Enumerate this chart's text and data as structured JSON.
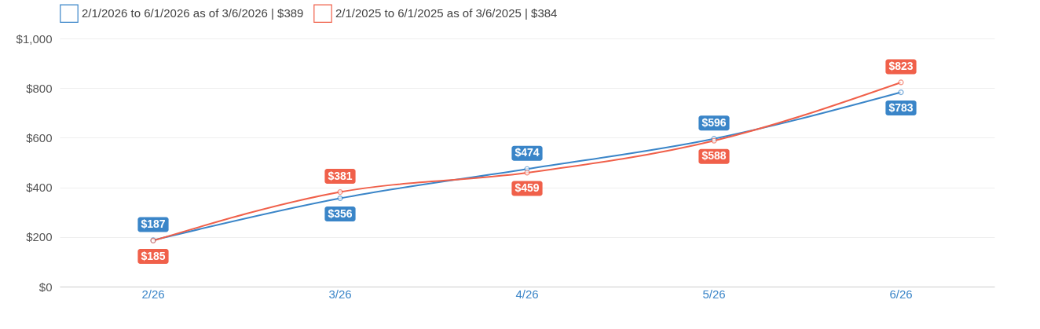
{
  "chart_data": {
    "type": "line",
    "categories": [
      "2/26",
      "3/26",
      "4/26",
      "5/26",
      "6/26"
    ],
    "series": [
      {
        "name": "2/1/2026 to 6/1/2026 as of 3/6/2026 | $389",
        "color": "#3a85c8",
        "values": [
          187,
          356,
          474,
          596,
          783
        ],
        "value_labels": [
          "$187",
          "$356",
          "$474",
          "$596",
          "$783"
        ]
      },
      {
        "name": "2/1/2025 to 6/1/2025 as of 3/6/2025 | $384",
        "color": "#f0604a",
        "values": [
          185,
          381,
          459,
          588,
          823
        ],
        "value_labels": [
          "$185",
          "$381",
          "$459",
          "$588",
          "$823"
        ]
      }
    ],
    "ylim": [
      0,
      1000
    ],
    "yticks": [
      {
        "value": 0,
        "label": "$0"
      },
      {
        "value": 200,
        "label": "$200"
      },
      {
        "value": 400,
        "label": "$400"
      },
      {
        "value": 600,
        "label": "$600"
      },
      {
        "value": 800,
        "label": "$800"
      },
      {
        "value": 1000,
        "label": "$1,000"
      }
    ],
    "grid": "y",
    "legend": "top",
    "marker": "circle",
    "line_style": "solid"
  }
}
